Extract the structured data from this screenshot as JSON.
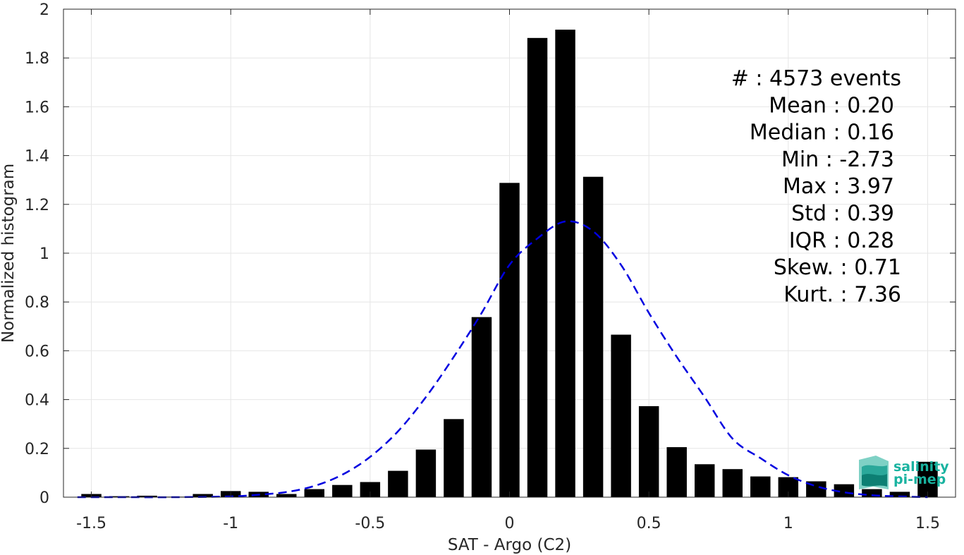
{
  "chart_data": {
    "type": "bar",
    "xlabel": "SAT - Argo (C2)",
    "ylabel": "Normalized histogram",
    "xlim": [
      -1.6,
      1.6
    ],
    "ylim": [
      0,
      2
    ],
    "xticks": [
      -1.5,
      -1,
      -0.5,
      0,
      0.5,
      1,
      1.5
    ],
    "xtick_labels": [
      "-1.5",
      "-1",
      "-0.5",
      "0",
      "0.5",
      "1",
      "1.5"
    ],
    "yticks": [
      0,
      0.2,
      0.4,
      0.6,
      0.8,
      1,
      1.2,
      1.4,
      1.6,
      1.8,
      2
    ],
    "ytick_labels": [
      "0",
      "0.2",
      "0.4",
      "0.6",
      "0.8",
      "1",
      "1.2",
      "1.4",
      "1.6",
      "1.8",
      "2"
    ],
    "grid": true,
    "bar_width": 0.072,
    "bars": {
      "x": [
        -1.5,
        -1.4,
        -1.3,
        -1.2,
        -1.1,
        -1.0,
        -0.9,
        -0.8,
        -0.7,
        -0.6,
        -0.5,
        -0.4,
        -0.3,
        -0.2,
        -0.1,
        0.0,
        0.1,
        0.2,
        0.3,
        0.4,
        0.5,
        0.6,
        0.7,
        0.8,
        0.9,
        1.0,
        1.1,
        1.2,
        1.3,
        1.4,
        1.5
      ],
      "values": [
        0.013,
        0.004,
        0.006,
        0.002,
        0.013,
        0.025,
        0.022,
        0.013,
        0.033,
        0.05,
        0.062,
        0.108,
        0.195,
        0.32,
        0.738,
        1.288,
        1.882,
        1.916,
        1.313,
        0.666,
        0.373,
        0.205,
        0.135,
        0.115,
        0.085,
        0.082,
        0.065,
        0.053,
        0.033,
        0.022,
        0.145
      ]
    },
    "fit_curve": {
      "style": "dashed",
      "color": "#0000e0",
      "x": [
        -1.55,
        -1.4,
        -1.2,
        -1.0,
        -0.9,
        -0.8,
        -0.7,
        -0.6,
        -0.5,
        -0.4,
        -0.3,
        -0.2,
        -0.1,
        0.0,
        0.1,
        0.2,
        0.3,
        0.4,
        0.5,
        0.6,
        0.7,
        0.8,
        0.9,
        1.0,
        1.1,
        1.2,
        1.3,
        1.4,
        1.5
      ],
      "y": [
        0.0,
        0.0,
        0.0,
        0.003,
        0.01,
        0.021,
        0.046,
        0.092,
        0.165,
        0.27,
        0.41,
        0.575,
        0.755,
        0.952,
        1.06,
        1.13,
        1.09,
        0.952,
        0.755,
        0.575,
        0.41,
        0.24,
        0.16,
        0.09,
        0.045,
        0.02,
        0.008,
        0.003,
        0.0
      ]
    },
    "stats": [
      "#  : 4573 events",
      "Mean : 0.20",
      "Median : 0.16",
      "Min : -2.73",
      "Max : 3.97",
      "Std : 0.39",
      "IQR : 0.28",
      "Skew. : 0.71",
      "Kurt. : 7.36"
    ],
    "colors": {
      "bars": "#000000",
      "grid": "#e6e6e6",
      "axis": "#262626",
      "logo": "#19b3a0"
    }
  },
  "logo": {
    "line1": "salinity",
    "line2": "pi-mep"
  }
}
